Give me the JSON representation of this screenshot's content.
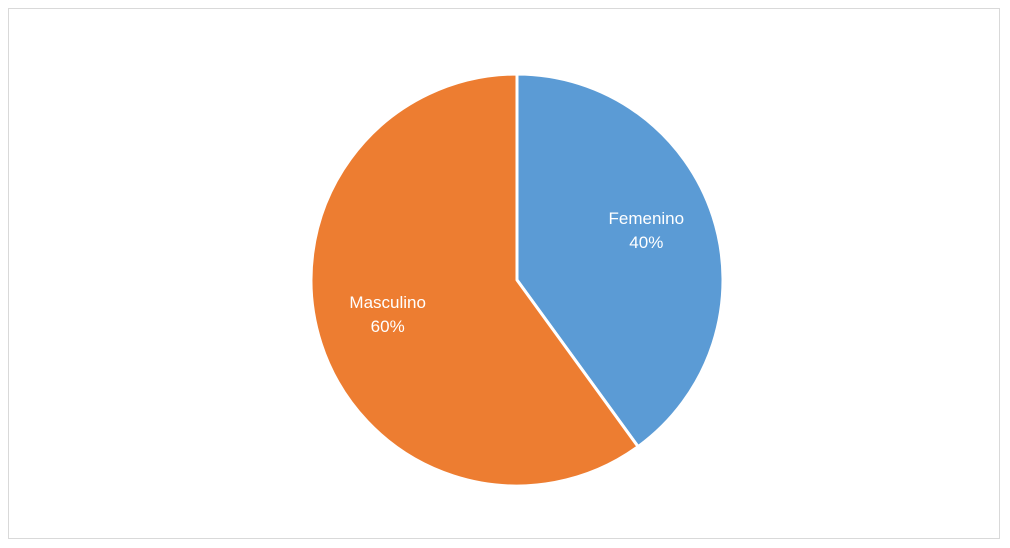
{
  "chart_data": {
    "type": "pie",
    "title": "",
    "slices": [
      {
        "name": "Femenino",
        "value": 40,
        "label": "40%",
        "color": "#5b9bd5"
      },
      {
        "name": "Masculino",
        "value": 60,
        "label": "60%",
        "color": "#ed7d31"
      }
    ],
    "start_angle": "12 o'clock",
    "direction": "clockwise",
    "legend": "none",
    "data_labels": "inside"
  }
}
